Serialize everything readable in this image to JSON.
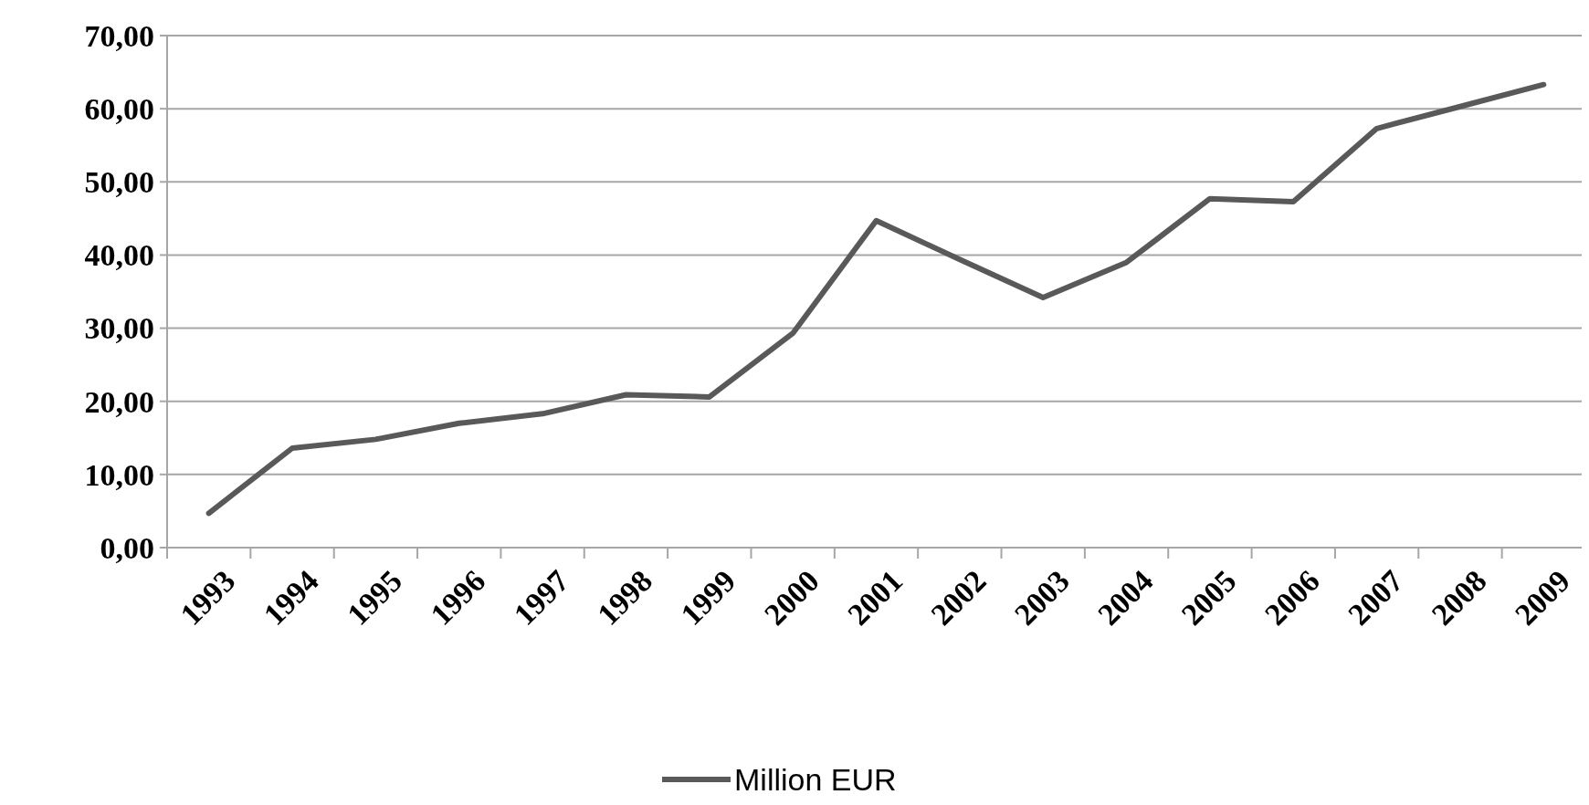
{
  "chart_data": {
    "type": "line",
    "categories": [
      "1993",
      "1994",
      "1995",
      "1996",
      "1997",
      "1998",
      "1999",
      "2000",
      "2001",
      "2002",
      "2003",
      "2004",
      "2005",
      "2006",
      "2007",
      "2008",
      "2009"
    ],
    "series": [
      {
        "name": "Million EUR",
        "color": "#595959",
        "values": [
          4.7,
          13.6,
          14.8,
          17.0,
          18.3,
          20.9,
          20.6,
          29.3,
          44.7,
          39.4,
          34.2,
          39.0,
          47.7,
          47.3,
          57.3,
          60.3,
          63.3
        ]
      }
    ],
    "ylim": [
      0,
      70
    ],
    "yticks": [
      {
        "value": 0,
        "label": "0,00"
      },
      {
        "value": 10,
        "label": "10,00"
      },
      {
        "value": 20,
        "label": "20,00"
      },
      {
        "value": 30,
        "label": "30,00"
      },
      {
        "value": 40,
        "label": "40,00"
      },
      {
        "value": 50,
        "label": "50,00"
      },
      {
        "value": 60,
        "label": "60,00"
      },
      {
        "value": 70,
        "label": "70,00"
      }
    ],
    "grid": "y",
    "legend": "bottom",
    "marker": "none",
    "line_style": "solid"
  }
}
